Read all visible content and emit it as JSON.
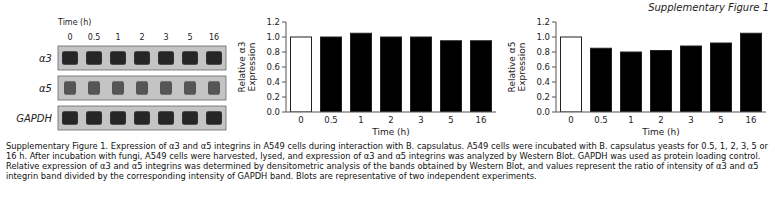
{
  "title": "Supplementary Figure 1",
  "caption": "Supplementary Figure 1. Expression of α3 and α5 integrins in A549 cells during interaction with B. capsulatus. A549 cells were incubated with B. capsulatus yeasts for 0.5, 1, 2, 3, 5 or 16 h. After incubation with fungi, A549 cells were harvested, lysed, and expression of α3 and α5 integrins was analyzed by Western Blot. GAPDH was used as protein loading control. Relative expression of α3 and α5 integrins was determined by densitometric analysis of the bands obtained by Western Blot, and values represent the ratio of intensity of α3 and α5 integrin band divided by the corresponding intensity of GAPDH band. Blots are representative of two independent experiments.",
  "blot_labels": [
    "α3",
    "α5",
    "GAPDH"
  ],
  "chart_data": [
    {
      "type": "bar",
      "categories": [
        "0",
        "0.5",
        "1",
        "2",
        "3",
        "5",
        "16"
      ],
      "values": [
        1.0,
        1.0,
        1.05,
        1.0,
        1.0,
        0.95,
        0.95
      ],
      "colors": [
        "white",
        "black",
        "black",
        "black",
        "black",
        "black",
        "black"
      ],
      "xlabel": "Time (h)",
      "ylabel": "Relative α3\nExpression",
      "ylim": [
        0,
        1.2
      ],
      "yticks": [
        {
          "value": 0,
          "label": "0.0"
        },
        {
          "value": 0.2,
          "label": "0.2"
        },
        {
          "value": 0.4,
          "label": "0.4"
        },
        {
          "value": 0.6,
          "label": "0.6"
        },
        {
          "value": 0.8,
          "label": "0.8"
        },
        {
          "value": 1.0,
          "label": "1.0"
        },
        {
          "value": 1.2,
          "label": "1.2"
        }
      ],
      "grid": false
    },
    {
      "type": "bar",
      "categories": [
        "0",
        "0.5",
        "1",
        "2",
        "3",
        "5",
        "16"
      ],
      "values": [
        1.0,
        0.85,
        0.8,
        0.82,
        0.88,
        0.92,
        1.05
      ],
      "colors": [
        "white",
        "black",
        "black",
        "black",
        "black",
        "black",
        "black"
      ],
      "xlabel": "Time (h)",
      "ylabel": "Relative α5\nExpression",
      "ylim": [
        0,
        1.2
      ],
      "yticks": [
        {
          "value": 0,
          "label": "0.0"
        },
        {
          "value": 0.2,
          "label": "0.2"
        },
        {
          "value": 0.4,
          "label": "0.4"
        },
        {
          "value": 0.6,
          "label": "0.6"
        },
        {
          "value": 0.8,
          "label": "0.8"
        },
        {
          "value": 1.0,
          "label": "1.0"
        },
        {
          "value": 1.2,
          "label": "1.2"
        }
      ],
      "grid": false
    }
  ]
}
